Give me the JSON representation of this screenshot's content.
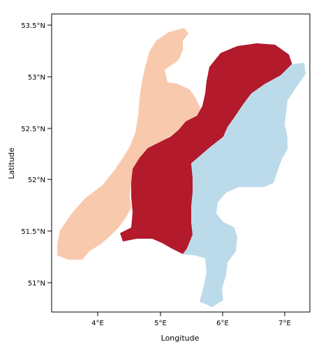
{
  "map": {
    "x_axis_title": "Longitude",
    "y_axis_title": "Latitude",
    "x_ticks": [
      {
        "label": "4°E",
        "value": 4
      },
      {
        "label": "5°E",
        "value": 5
      },
      {
        "label": "6°E",
        "value": 6
      },
      {
        "label": "7°E",
        "value": 7
      }
    ],
    "y_ticks": [
      {
        "label": "53.5°N",
        "value": 53.5
      },
      {
        "label": "53°N",
        "value": 53.0
      },
      {
        "label": "52.5°N",
        "value": 52.5
      },
      {
        "label": "52°N",
        "value": 52.0
      },
      {
        "label": "51.5°N",
        "value": 51.5
      },
      {
        "label": "51°N",
        "value": 51.0
      }
    ],
    "x_range": [
      3.33,
      7.3
    ],
    "y_range": [
      50.7,
      53.65
    ],
    "colors": {
      "west": "#f9c9ad",
      "central": "#b31a2c",
      "east": "#bcdbea"
    }
  }
}
